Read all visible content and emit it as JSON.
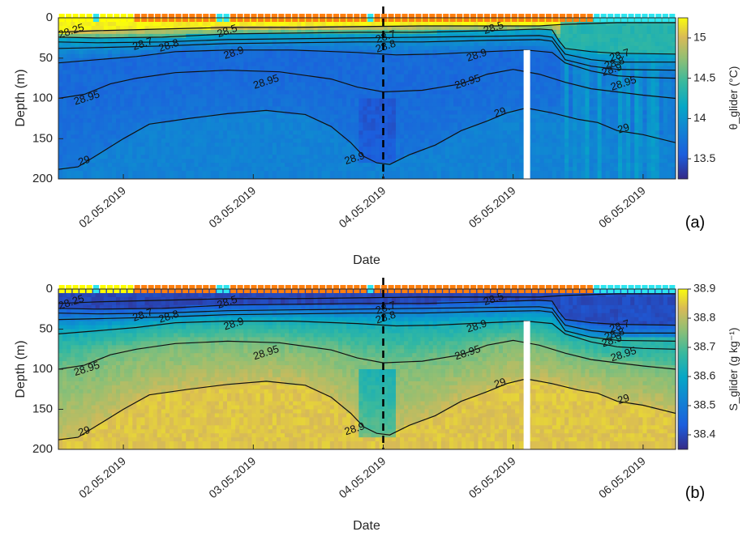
{
  "chart_data": [
    {
      "id": "a",
      "type": "heatmap",
      "panel_label": "(a)",
      "xlabel": "Date",
      "ylabel": "Depth (m)",
      "colorbar_label": "θ_glider (°C)",
      "colorbar_ticks": [
        "15",
        "14.5",
        "14",
        "13.5"
      ],
      "colorbar_tick_values": [
        15,
        14.5,
        14,
        13.5
      ],
      "clim": [
        13.25,
        15.25
      ],
      "x_ticks": [
        "02.05.2019",
        "03.05.2019",
        "04.05.2019",
        "05.05.2019",
        "06.05.2019"
      ],
      "x_tick_values": [
        1.2,
        2.2,
        3.2,
        4.2,
        5.2
      ],
      "y_ticks": [
        "0",
        "50",
        "100",
        "150",
        "200"
      ],
      "y_tick_values": [
        0,
        50,
        100,
        150,
        200
      ],
      "ylim": [
        0,
        200
      ],
      "y_reversed": true,
      "contour_labels": [
        {
          "text": "28.25",
          "x": 0.8,
          "y": 17
        },
        {
          "text": "28.5",
          "x": 2.0,
          "y": 17
        },
        {
          "text": "28.7",
          "x": 1.35,
          "y": 33
        },
        {
          "text": "28.8",
          "x": 1.55,
          "y": 35
        },
        {
          "text": "28.9",
          "x": 2.05,
          "y": 44
        },
        {
          "text": "28.95",
          "x": 2.3,
          "y": 80
        },
        {
          "text": "28.9",
          "x": 0.6,
          "y": 95
        },
        {
          "text": "28.95",
          "x": 0.92,
          "y": 100
        },
        {
          "text": "29",
          "x": 0.9,
          "y": 178
        },
        {
          "text": "28.7",
          "x": 3.22,
          "y": 24
        },
        {
          "text": "28.8",
          "x": 3.22,
          "y": 36
        },
        {
          "text": "28.5",
          "x": 4.05,
          "y": 13
        },
        {
          "text": "28.9",
          "x": 3.92,
          "y": 47
        },
        {
          "text": "28.95",
          "x": 3.85,
          "y": 80
        },
        {
          "text": "29",
          "x": 4.1,
          "y": 118
        },
        {
          "text": "28.7",
          "x": 5.02,
          "y": 47
        },
        {
          "text": "28.8",
          "x": 4.98,
          "y": 57
        },
        {
          "text": "28.9",
          "x": 4.96,
          "y": 65
        },
        {
          "text": "28.95",
          "x": 5.05,
          "y": 82
        },
        {
          "text": "29",
          "x": 5.05,
          "y": 138
        },
        {
          "text": "28.9",
          "x": 2.98,
          "y": 175
        }
      ]
    },
    {
      "id": "b",
      "type": "heatmap",
      "panel_label": "(b)",
      "xlabel": "Date",
      "ylabel": "Depth (m)",
      "colorbar_label": "S_glider (g kg⁻¹)",
      "colorbar_ticks": [
        "38.9",
        "38.8",
        "38.7",
        "38.6",
        "38.5",
        "38.4"
      ],
      "colorbar_tick_values": [
        38.9,
        38.8,
        38.7,
        38.6,
        38.5,
        38.4
      ],
      "clim": [
        38.35,
        38.9
      ],
      "x_ticks": [
        "02.05.2019",
        "03.05.2019",
        "04.05.2019",
        "05.05.2019",
        "06.05.2019"
      ],
      "x_tick_values": [
        1.2,
        2.2,
        3.2,
        4.2,
        5.2
      ],
      "y_ticks": [
        "0",
        "50",
        "100",
        "150",
        "200"
      ],
      "y_tick_values": [
        0,
        50,
        100,
        150,
        200
      ],
      "ylim": [
        0,
        200
      ],
      "y_reversed": true,
      "contour_labels": [
        {
          "text": "28.25",
          "x": 0.8,
          "y": 17
        },
        {
          "text": "28.5",
          "x": 2.0,
          "y": 17
        },
        {
          "text": "28.7",
          "x": 1.35,
          "y": 33
        },
        {
          "text": "28.8",
          "x": 1.55,
          "y": 35
        },
        {
          "text": "28.9",
          "x": 2.05,
          "y": 44
        },
        {
          "text": "28.95",
          "x": 2.3,
          "y": 80
        },
        {
          "text": "28.9",
          "x": 0.6,
          "y": 95
        },
        {
          "text": "28.95",
          "x": 0.92,
          "y": 100
        },
        {
          "text": "29",
          "x": 0.9,
          "y": 178
        },
        {
          "text": "28.7",
          "x": 3.22,
          "y": 24
        },
        {
          "text": "28.8",
          "x": 3.22,
          "y": 36
        },
        {
          "text": "28.5",
          "x": 4.05,
          "y": 13
        },
        {
          "text": "28.9",
          "x": 3.92,
          "y": 47
        },
        {
          "text": "28.95",
          "x": 3.85,
          "y": 80
        },
        {
          "text": "29",
          "x": 4.1,
          "y": 118
        },
        {
          "text": "28.7",
          "x": 5.02,
          "y": 47
        },
        {
          "text": "28.8",
          "x": 4.98,
          "y": 57
        },
        {
          "text": "28.9",
          "x": 4.96,
          "y": 65
        },
        {
          "text": "28.95",
          "x": 5.05,
          "y": 82
        },
        {
          "text": "29",
          "x": 5.05,
          "y": 138
        },
        {
          "text": "28.9",
          "x": 2.98,
          "y": 175
        }
      ]
    }
  ],
  "shared": {
    "x_range_days": [
      0.7,
      5.45
    ],
    "event_line_x": 3.2,
    "data_gap_x": [
      4.28,
      4.33
    ],
    "contours": [
      {
        "level": "28.25",
        "x": [
          0.7,
          1.0,
          1.5,
          2.0,
          2.5,
          3.0,
          3.5,
          4.0,
          4.4,
          4.6,
          4.8,
          5.0,
          5.45
        ],
        "y": [
          18,
          16,
          14,
          12,
          12,
          11,
          10,
          10,
          10,
          8,
          7,
          6,
          6
        ]
      },
      {
        "level": "28.5",
        "x": [
          0.7,
          1.0,
          1.5,
          2.0,
          2.5,
          3.0,
          3.5,
          4.0,
          4.4,
          4.5,
          4.55,
          4.6,
          4.8,
          5.0,
          5.45
        ],
        "y": [
          24,
          25,
          24,
          20,
          19,
          18,
          18,
          16,
          14,
          15,
          28,
          38,
          42,
          44,
          45
        ]
      },
      {
        "level": "28.7",
        "x": [
          0.7,
          1.0,
          1.5,
          2.0,
          2.5,
          3.0,
          3.5,
          4.0,
          4.4,
          4.5,
          4.55,
          4.6,
          4.8,
          5.0,
          5.45
        ],
        "y": [
          30,
          31,
          30,
          27,
          26,
          25,
          24,
          23,
          22,
          24,
          35,
          45,
          52,
          55,
          55
        ]
      },
      {
        "level": "28.8",
        "x": [
          0.7,
          1.0,
          1.5,
          2.0,
          2.5,
          3.0,
          3.5,
          4.0,
          4.4,
          4.5,
          4.55,
          4.6,
          4.8,
          5.0,
          5.45
        ],
        "y": [
          38,
          37,
          35,
          32,
          31,
          30,
          30,
          28,
          27,
          29,
          40,
          52,
          60,
          64,
          65
        ]
      },
      {
        "level": "28.9",
        "x": [
          0.7,
          1.0,
          1.3,
          1.6,
          2.0,
          2.5,
          3.0,
          3.3,
          3.6,
          4.0,
          4.3,
          4.5,
          4.6,
          4.8,
          5.0,
          5.2,
          5.45
        ],
        "y": [
          56,
          52,
          48,
          42,
          40,
          40,
          43,
          46,
          45,
          42,
          40,
          43,
          56,
          66,
          72,
          74,
          75
        ]
      },
      {
        "level": "28.95",
        "x": [
          0.7,
          0.9,
          1.1,
          1.3,
          1.6,
          2.0,
          2.4,
          2.8,
          3.0,
          3.2,
          3.5,
          3.8,
          4.0,
          4.2,
          4.4,
          4.6,
          4.8,
          5.0,
          5.2,
          5.45
        ],
        "y": [
          100,
          95,
          82,
          75,
          68,
          65,
          67,
          76,
          86,
          92,
          90,
          82,
          70,
          64,
          70,
          80,
          88,
          92,
          96,
          100
        ]
      },
      {
        "level": "29",
        "x": [
          0.7,
          0.85,
          1.0,
          1.2,
          1.4,
          1.7,
          2.0,
          2.3,
          2.6,
          2.8,
          2.95,
          3.05,
          3.15,
          3.25,
          3.4,
          3.6,
          3.8,
          4.0,
          4.15,
          4.3,
          4.5,
          4.7,
          4.85,
          5.0,
          5.2,
          5.45
        ],
        "y": [
          188,
          185,
          170,
          150,
          132,
          125,
          119,
          115,
          120,
          135,
          155,
          172,
          180,
          182,
          170,
          158,
          140,
          128,
          118,
          112,
          118,
          126,
          130,
          140,
          145,
          155
        ]
      }
    ],
    "surface_markers": [
      "yellow",
      "yellow",
      "yellow",
      "yellow",
      "yellow",
      "cyan",
      "yellow",
      "yellow",
      "yellow",
      "yellow",
      "yellow",
      "orange",
      "orange",
      "orange",
      "orange",
      "orange",
      "orange",
      "orange",
      "orange",
      "orange",
      "orange",
      "orange",
      "orange",
      "cyan",
      "cyan",
      "orange",
      "orange",
      "orange",
      "orange",
      "orange",
      "orange",
      "orange",
      "orange",
      "orange",
      "orange",
      "orange",
      "orange",
      "orange",
      "orange",
      "orange",
      "orange",
      "orange",
      "orange",
      "orange",
      "orange",
      "cyan",
      "orange",
      "orange",
      "orange",
      "orange",
      "orange",
      "orange",
      "orange",
      "orange",
      "orange",
      "orange",
      "orange",
      "orange",
      "orange",
      "orange",
      "orange",
      "orange",
      "orange",
      "orange",
      "orange",
      "orange",
      "orange",
      "orange",
      "orange",
      "orange",
      "orange",
      "orange",
      "orange",
      "orange",
      "orange",
      "orange",
      "orange",
      "orange",
      "cyan",
      "cyan",
      "cyan",
      "cyan",
      "cyan",
      "cyan",
      "cyan",
      "cyan",
      "cyan",
      "cyan",
      "cyan",
      "cyan"
    ],
    "marker_colors": {
      "yellow": "#ffff00",
      "orange": "#ff7f0e",
      "cyan": "#2ee6f0"
    }
  }
}
